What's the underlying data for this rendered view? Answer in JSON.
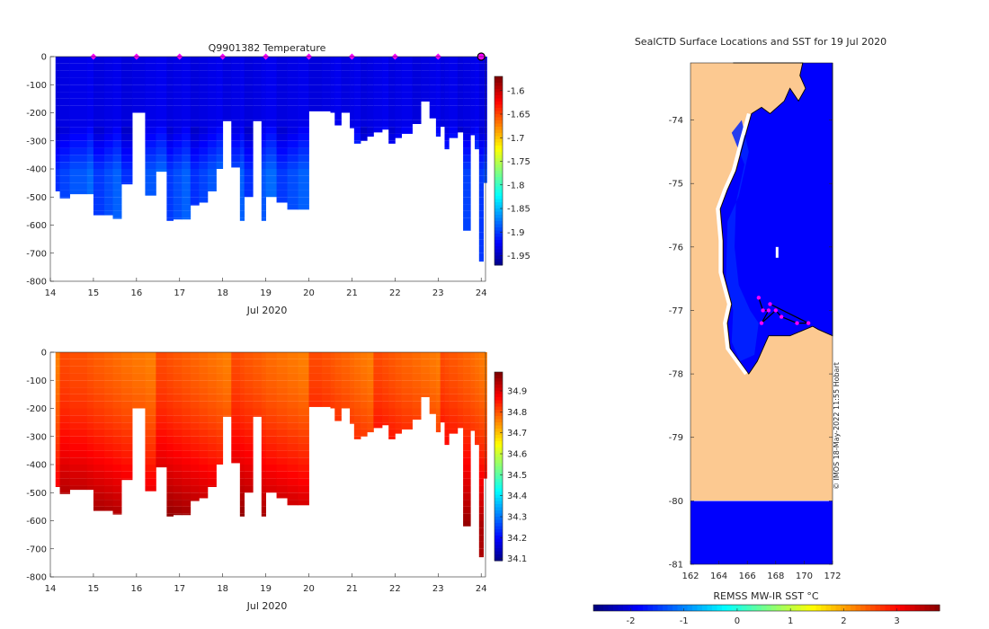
{
  "chart_data": [
    {
      "type": "heatmap",
      "id": "temperature",
      "title": "Q9901382  Temperature",
      "xlabel": "Jul 2020",
      "ylabel": "",
      "xlim": [
        14,
        24.1
      ],
      "ylim": [
        -800,
        0
      ],
      "xticks": [
        14,
        15,
        16,
        17,
        18,
        19,
        20,
        21,
        22,
        23,
        24
      ],
      "yticks": [
        0,
        -100,
        -200,
        -300,
        -400,
        -500,
        -600,
        -700,
        -800
      ],
      "colorbar": {
        "min": -1.97,
        "max": -1.57,
        "ticks": [
          -1.6,
          -1.65,
          -1.7,
          -1.75,
          -1.8,
          -1.85,
          -1.9,
          -1.95
        ]
      },
      "surface_markers_days": [
        15,
        16,
        17,
        18,
        19,
        20,
        21,
        22,
        23,
        24
      ],
      "surface_value": -1.93,
      "deep_value": -1.89,
      "profiles": [
        {
          "t": 14.12,
          "depth": 480
        },
        {
          "t": 14.22,
          "depth": 505
        },
        {
          "t": 14.45,
          "depth": 490
        },
        {
          "t": 14.85,
          "depth": 490
        },
        {
          "t": 15.0,
          "depth": 565
        },
        {
          "t": 15.25,
          "depth": 565
        },
        {
          "t": 15.45,
          "depth": 578
        },
        {
          "t": 15.65,
          "depth": 455
        },
        {
          "t": 15.9,
          "depth": 200
        },
        {
          "t": 16.2,
          "depth": 495
        },
        {
          "t": 16.45,
          "depth": 410
        },
        {
          "t": 16.7,
          "depth": 585
        },
        {
          "t": 16.85,
          "depth": 580
        },
        {
          "t": 17.05,
          "depth": 580
        },
        {
          "t": 17.25,
          "depth": 530
        },
        {
          "t": 17.45,
          "depth": 520
        },
        {
          "t": 17.65,
          "depth": 480
        },
        {
          "t": 17.85,
          "depth": 400
        },
        {
          "t": 18.0,
          "depth": 230
        },
        {
          "t": 18.2,
          "depth": 395
        },
        {
          "t": 18.4,
          "depth": 585
        },
        {
          "t": 18.5,
          "depth": 500
        },
        {
          "t": 18.7,
          "depth": 230
        },
        {
          "t": 18.9,
          "depth": 585
        },
        {
          "t": 19.0,
          "depth": 500
        },
        {
          "t": 19.25,
          "depth": 520
        },
        {
          "t": 19.5,
          "depth": 545
        },
        {
          "t": 19.75,
          "depth": 545
        },
        {
          "t": 20.0,
          "depth": 195
        },
        {
          "t": 20.3,
          "depth": 195
        },
        {
          "t": 20.5,
          "depth": 200
        },
        {
          "t": 20.6,
          "depth": 245
        },
        {
          "t": 20.75,
          "depth": 200
        },
        {
          "t": 20.95,
          "depth": 255
        },
        {
          "t": 21.05,
          "depth": 310
        },
        {
          "t": 21.2,
          "depth": 300
        },
        {
          "t": 21.35,
          "depth": 285
        },
        {
          "t": 21.5,
          "depth": 270
        },
        {
          "t": 21.7,
          "depth": 260
        },
        {
          "t": 21.85,
          "depth": 310
        },
        {
          "t": 22.0,
          "depth": 290
        },
        {
          "t": 22.15,
          "depth": 275
        },
        {
          "t": 22.4,
          "depth": 240
        },
        {
          "t": 22.6,
          "depth": 160
        },
        {
          "t": 22.8,
          "depth": 220
        },
        {
          "t": 22.95,
          "depth": 285
        },
        {
          "t": 23.05,
          "depth": 250
        },
        {
          "t": 23.15,
          "depth": 330
        },
        {
          "t": 23.25,
          "depth": 290
        },
        {
          "t": 23.45,
          "depth": 270
        },
        {
          "t": 23.58,
          "depth": 620
        },
        {
          "t": 23.75,
          "depth": 280
        },
        {
          "t": 23.85,
          "depth": 330
        },
        {
          "t": 23.95,
          "depth": 730
        },
        {
          "t": 24.05,
          "depth": 450
        }
      ]
    },
    {
      "type": "heatmap",
      "id": "salinity",
      "title": "",
      "xlabel": "Jul 2020",
      "ylabel": "",
      "xlim": [
        14,
        24.1
      ],
      "ylim": [
        -800,
        0
      ],
      "xticks": [
        14,
        15,
        16,
        17,
        18,
        19,
        20,
        21,
        22,
        23,
        24
      ],
      "yticks": [
        0,
        -100,
        -200,
        -300,
        -400,
        -500,
        -600,
        -700,
        -800
      ],
      "colorbar": {
        "min": 34.09,
        "max": 34.99,
        "ticks": [
          34.9,
          34.8,
          34.7,
          34.6,
          34.5,
          34.4,
          34.3,
          34.2,
          34.1
        ]
      },
      "surface_value": 34.79,
      "deep_value": 34.97,
      "profiles_ref": "temperature"
    },
    {
      "type": "heatmap",
      "id": "sst_map",
      "title": "SealCTD Surface Locations and SST for 19 Jul 2020",
      "xlim": [
        162,
        172
      ],
      "ylim": [
        -81,
        -73.1
      ],
      "xticks": [
        162,
        164,
        166,
        168,
        170,
        172
      ],
      "yticks": [
        -74,
        -75,
        -76,
        -77,
        -78,
        -79,
        -80,
        -81
      ],
      "colorbar": {
        "label": "REMSS MW-IR SST °C",
        "min": -2.7,
        "max": 3.8,
        "ticks": [
          -2,
          -1,
          0,
          1,
          2,
          3
        ],
        "tick_labels": [
          "-2",
          "-1",
          "0",
          "1",
          "2",
          "3"
        ]
      },
      "land_color": "#fcc991",
      "ocean_value": -1.9,
      "coast": [
        [
          165.0,
          -73.1
        ],
        [
          169.9,
          -73.1
        ],
        [
          169.7,
          -73.3
        ],
        [
          170.1,
          -73.5
        ],
        [
          169.6,
          -73.7
        ],
        [
          169.0,
          -73.5
        ],
        [
          168.6,
          -73.7
        ],
        [
          167.6,
          -73.9
        ],
        [
          167.0,
          -73.8
        ],
        [
          166.3,
          -73.9
        ],
        [
          165.8,
          -74.3
        ],
        [
          165.2,
          -74.8
        ],
        [
          164.6,
          -75.1
        ],
        [
          164.1,
          -75.4
        ],
        [
          164.3,
          -75.9
        ],
        [
          164.3,
          -76.4
        ],
        [
          164.9,
          -76.9
        ],
        [
          164.6,
          -77.2
        ],
        [
          164.8,
          -77.6
        ],
        [
          166.1,
          -78.0
        ],
        [
          166.7,
          -77.8
        ],
        [
          167.5,
          -77.4
        ],
        [
          169.0,
          -77.4
        ],
        [
          170.6,
          -77.25
        ],
        [
          171.0,
          -77.3
        ],
        [
          172.0,
          -77.4
        ],
        [
          172.0,
          -73.1
        ]
      ],
      "fast_ice": [
        [
          164.9,
          -74.2
        ],
        [
          165.6,
          -74.0
        ],
        [
          166.1,
          -74.5
        ],
        [
          165.4,
          -75.2
        ],
        [
          164.6,
          -75.6
        ],
        [
          164.5,
          -76.5
        ],
        [
          165.0,
          -77.0
        ],
        [
          164.9,
          -77.5
        ],
        [
          165.5,
          -77.8
        ],
        [
          166.5,
          -77.7
        ],
        [
          166.8,
          -77.2
        ],
        [
          166.2,
          -77.0
        ],
        [
          165.4,
          -76.6
        ],
        [
          165.1,
          -76.0
        ],
        [
          165.2,
          -75.3
        ],
        [
          165.8,
          -74.7
        ]
      ],
      "ice_front_lat": -80,
      "seal_locations": [
        [
          166.8,
          -76.8
        ],
        [
          167.1,
          -77.0
        ],
        [
          167.5,
          -77.0
        ],
        [
          167.0,
          -77.2
        ],
        [
          168.0,
          -77.0
        ],
        [
          168.4,
          -77.1
        ],
        [
          169.5,
          -77.2
        ],
        [
          170.3,
          -77.2
        ],
        [
          167.6,
          -76.9
        ]
      ],
      "watermark": "© IMOS 18-May-2022 11:55 Hobart"
    }
  ]
}
